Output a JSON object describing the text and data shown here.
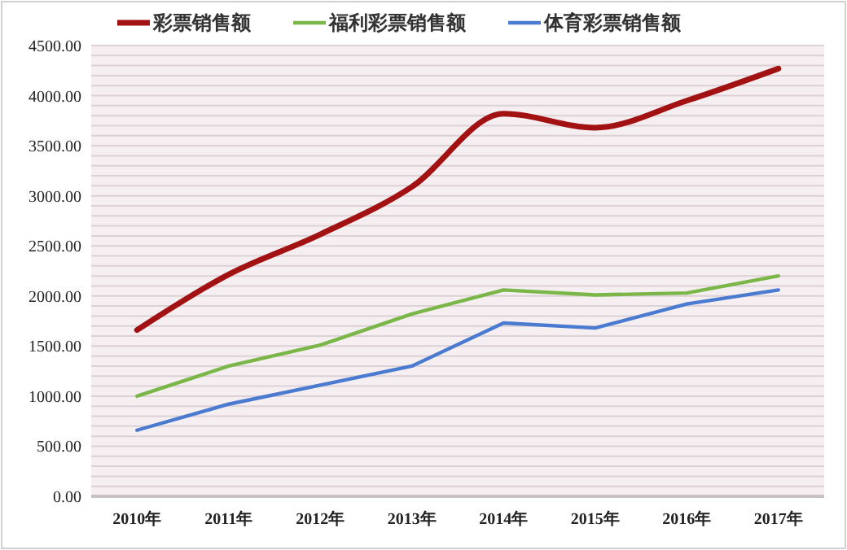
{
  "chart_data": {
    "type": "line",
    "categories": [
      "2010年",
      "2011年",
      "2012年",
      "2013年",
      "2014年",
      "2015年",
      "2016年",
      "2017年"
    ],
    "series": [
      {
        "name": "彩票销售额",
        "color": "#a31212",
        "values": [
          1660,
          2215,
          2615,
          3090,
          3820,
          3680,
          3950,
          4270
        ]
      },
      {
        "name": "福利彩票销售额",
        "color": "#7ab648",
        "values": [
          1000,
          1300,
          1510,
          1820,
          2060,
          2010,
          2030,
          2200
        ]
      },
      {
        "name": "体育彩票销售额",
        "color": "#4a7bd0",
        "values": [
          660,
          920,
          1110,
          1300,
          1730,
          1680,
          1920,
          2060
        ]
      }
    ],
    "ylim": [
      0,
      4500
    ],
    "yticks": [
      {
        "value": 0,
        "label": "0.00"
      },
      {
        "value": 100,
        "label": null
      },
      {
        "value": 200,
        "label": null
      },
      {
        "value": 300,
        "label": null
      },
      {
        "value": 400,
        "label": null
      },
      {
        "value": 500,
        "label": "500.00"
      },
      {
        "value": 600,
        "label": null
      },
      {
        "value": 700,
        "label": null
      },
      {
        "value": 800,
        "label": null
      },
      {
        "value": 900,
        "label": null
      },
      {
        "value": 1000,
        "label": "1000.00"
      },
      {
        "value": 1100,
        "label": null
      },
      {
        "value": 1200,
        "label": null
      },
      {
        "value": 1300,
        "label": null
      },
      {
        "value": 1400,
        "label": null
      },
      {
        "value": 1500,
        "label": "1500.00"
      },
      {
        "value": 1600,
        "label": null
      },
      {
        "value": 1700,
        "label": null
      },
      {
        "value": 1800,
        "label": null
      },
      {
        "value": 1900,
        "label": null
      },
      {
        "value": 2000,
        "label": "2000.00"
      },
      {
        "value": 2100,
        "label": null
      },
      {
        "value": 2200,
        "label": null
      },
      {
        "value": 2300,
        "label": null
      },
      {
        "value": 2400,
        "label": null
      },
      {
        "value": 2500,
        "label": "2500.00"
      },
      {
        "value": 2600,
        "label": null
      },
      {
        "value": 2700,
        "label": null
      },
      {
        "value": 2800,
        "label": null
      },
      {
        "value": 2900,
        "label": null
      },
      {
        "value": 3000,
        "label": "3000.00"
      },
      {
        "value": 3100,
        "label": null
      },
      {
        "value": 3200,
        "label": null
      },
      {
        "value": 3300,
        "label": null
      },
      {
        "value": 3400,
        "label": null
      },
      {
        "value": 3500,
        "label": "3500.00"
      },
      {
        "value": 3600,
        "label": null
      },
      {
        "value": 3700,
        "label": null
      },
      {
        "value": 3800,
        "label": null
      },
      {
        "value": 3900,
        "label": null
      },
      {
        "value": 4000,
        "label": "4000.00"
      },
      {
        "value": 4100,
        "label": null
      },
      {
        "value": 4200,
        "label": null
      },
      {
        "value": 4300,
        "label": null
      },
      {
        "value": 4400,
        "label": null
      },
      {
        "value": 4500,
        "label": "4500.00"
      }
    ],
    "grid": "y",
    "legend": "top",
    "marker": "none",
    "line_style": "solid"
  }
}
